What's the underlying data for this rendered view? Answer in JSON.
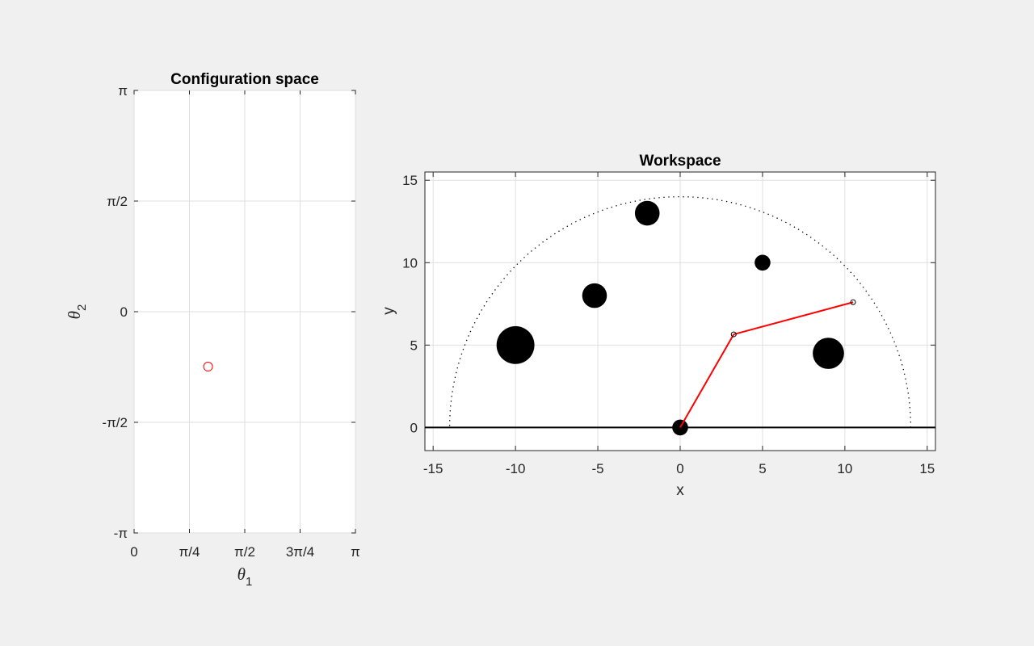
{
  "chart_data": [
    {
      "type": "scatter",
      "title": "Configuration space",
      "xlabel": {
        "symbol": "θ",
        "subscript": "1"
      },
      "ylabel": {
        "symbol": "θ",
        "subscript": "2"
      },
      "xlim": [
        0,
        3.14159
      ],
      "ylim": [
        -3.14159,
        3.14159
      ],
      "xticks": [
        {
          "value": 0,
          "label": "0"
        },
        {
          "value": 0.785398,
          "label": "π/4"
        },
        {
          "value": 1.570796,
          "label": "π/2"
        },
        {
          "value": 2.356194,
          "label": "3π/4"
        },
        {
          "value": 3.14159,
          "label": "π"
        }
      ],
      "yticks": [
        {
          "value": -3.14159,
          "label": "-π"
        },
        {
          "value": -1.570796,
          "label": "-π/2"
        },
        {
          "value": 0,
          "label": "0"
        },
        {
          "value": 1.570796,
          "label": "π/2"
        },
        {
          "value": 3.14159,
          "label": "π"
        }
      ],
      "grid": true,
      "points": [
        {
          "x": 1.05,
          "y": -0.78,
          "color": "#ff0000",
          "marker": "open-circle"
        }
      ]
    },
    {
      "type": "line",
      "title": "Workspace",
      "xlabel": "x",
      "ylabel": "y",
      "xlim": [
        -15.5,
        15.5
      ],
      "ylim": [
        -1.4,
        15.5
      ],
      "xticks": [
        -15,
        -10,
        -5,
        0,
        5,
        10,
        15
      ],
      "yticks": [
        0,
        5,
        10,
        15
      ],
      "grid": true,
      "ground_y": 0,
      "reach_radius": 14,
      "obstacles": [
        {
          "x": -10,
          "y": 5,
          "r": 1.15
        },
        {
          "x": -5.2,
          "y": 8,
          "r": 0.75
        },
        {
          "x": -2,
          "y": 13,
          "r": 0.75
        },
        {
          "x": 5,
          "y": 10,
          "r": 0.48
        },
        {
          "x": 9,
          "y": 4.5,
          "r": 0.95
        },
        {
          "x": 0,
          "y": 0,
          "r": 0.48
        }
      ],
      "arm": {
        "color": "#ff0000",
        "joints": [
          {
            "x": 0,
            "y": 0
          },
          {
            "x": 3.25,
            "y": 5.65
          },
          {
            "x": 10.5,
            "y": 7.6
          }
        ]
      },
      "colors": {
        "arm": "#ff0000",
        "obstacle": "#000000",
        "reach": "#000000"
      }
    }
  ]
}
